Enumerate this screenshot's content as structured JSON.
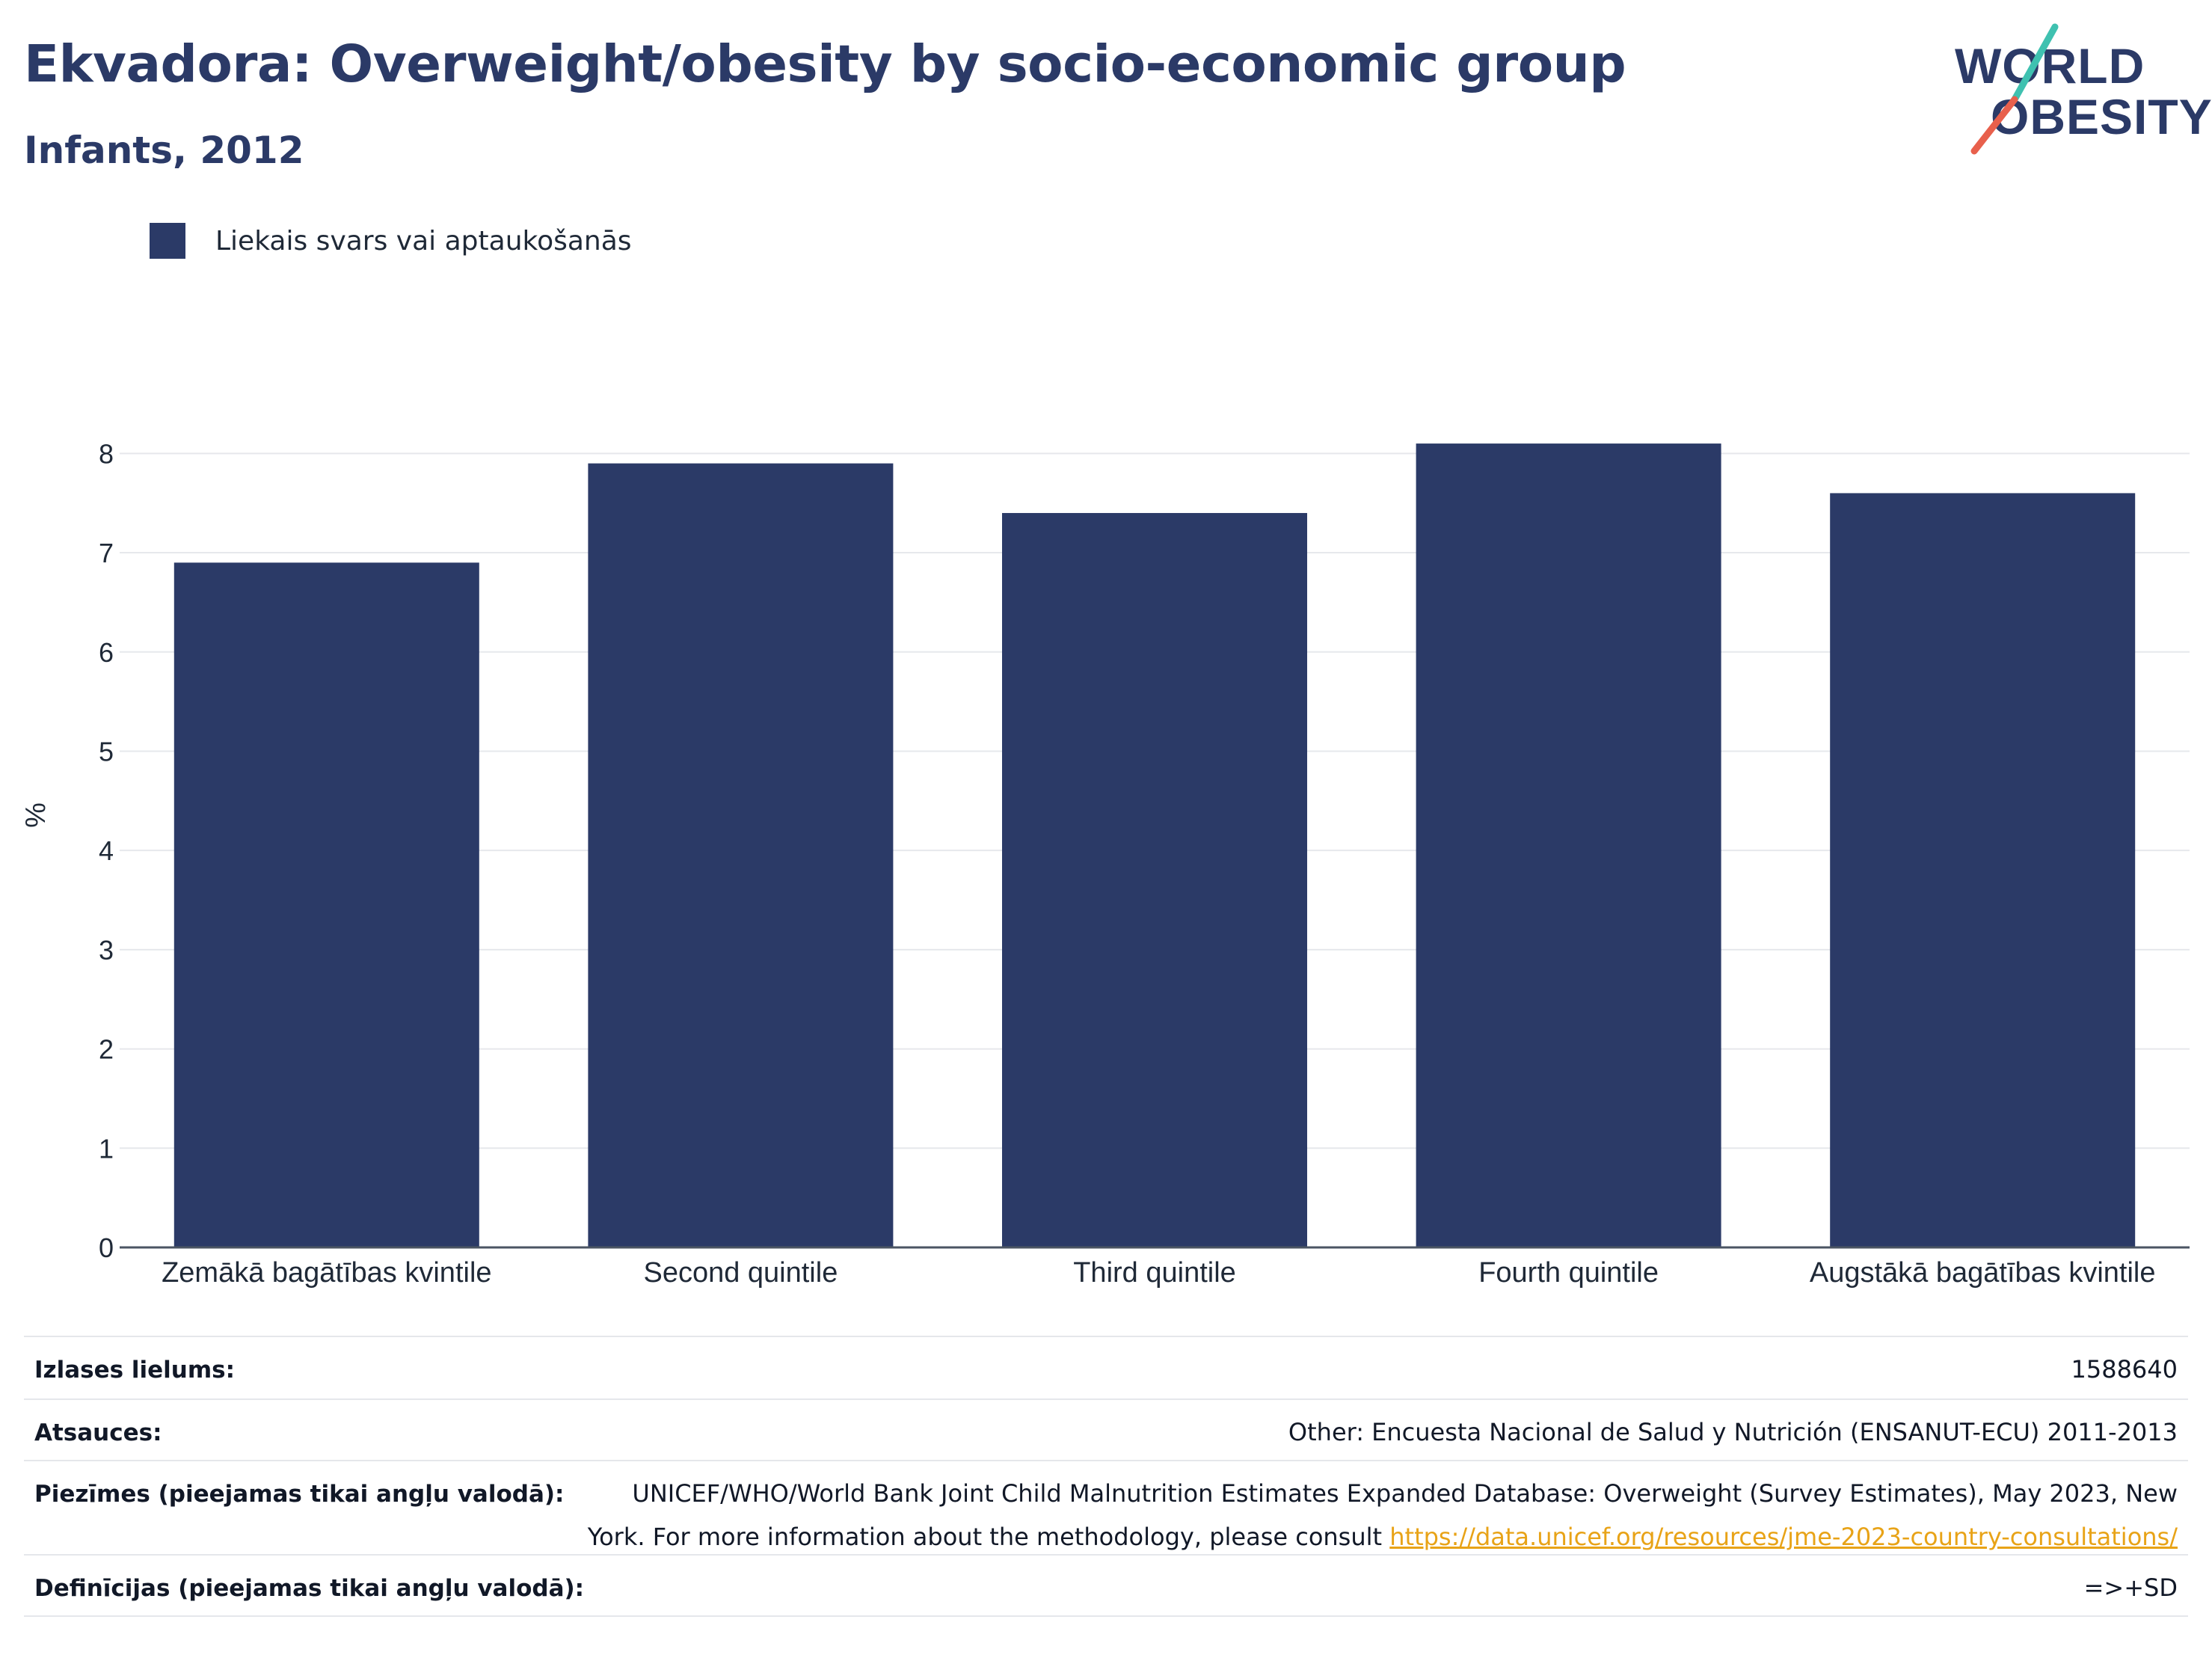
{
  "header": {
    "title": "Ekvadora: Overweight/obesity by socio-economic group",
    "subtitle": "Infants, 2012"
  },
  "logo": {
    "line1": "WORLD",
    "line2": "OBESITY",
    "colors": {
      "text": "#2b3a67",
      "slash_top": "#3fc1b0",
      "slash_bottom": "#e8604c"
    }
  },
  "legend": {
    "label": "Liekais svars vai aptaukošanās",
    "color": "#2b3a67"
  },
  "chart_data": {
    "type": "bar",
    "categories": [
      "Zemākā bagātības kvintile",
      "Second quintile",
      "Third quintile",
      "Fourth quintile",
      "Augstākā bagātības kvintile"
    ],
    "series": [
      {
        "name": "Liekais svars vai aptaukošanās",
        "values": [
          6.9,
          7.9,
          7.4,
          8.1,
          7.6
        ],
        "color": "#2b3a67"
      }
    ],
    "ylabel": "%",
    "xlabel": "",
    "ylim": [
      0,
      8.5
    ],
    "yticks": [
      0,
      1,
      2,
      3,
      4,
      5,
      6,
      7,
      8
    ],
    "grid": true,
    "legend_position": "top-left"
  },
  "footer": {
    "rows": [
      {
        "label": "Izlases lielums:",
        "value": "1588640"
      },
      {
        "label": "Atsauces:",
        "value": "Other: Encuesta Nacional de Salud y Nutrición (ENSANUT-ECU) 2011-2013"
      },
      {
        "label": "Piezīmes (pieejamas tikai angļu valodā):",
        "value_line1": "UNICEF/WHO/World Bank Joint Child Malnutrition Estimates Expanded Database: Overweight (Survey Estimates), May 2023, New",
        "value_line2": "York. For more information about the methodology, please consult",
        "link": "https://data.unicef.org/resources/jme-2023-country-consultations/"
      },
      {
        "label": "Definīcijas (pieejamas tikai angļu valodā):",
        "value": "=>+SD"
      }
    ]
  }
}
